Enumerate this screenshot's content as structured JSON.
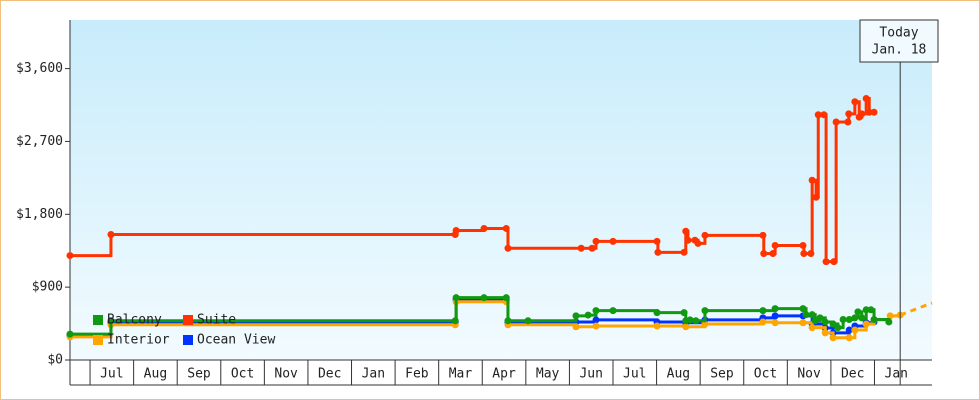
{
  "chart_data": {
    "type": "step-line",
    "xlim": [
      -0.46,
      19.32
    ],
    "ylim": [
      0,
      4200
    ],
    "yticks": [
      {
        "value": 0,
        "label": "$0"
      },
      {
        "value": 900,
        "label": "$900"
      },
      {
        "value": 1800,
        "label": "$1,800"
      },
      {
        "value": 2700,
        "label": "$2,700"
      },
      {
        "value": 3600,
        "label": "$3,600"
      }
    ],
    "xticks": [
      {
        "value": 0,
        "label": "Jul"
      },
      {
        "value": 1,
        "label": "Aug"
      },
      {
        "value": 2,
        "label": "Sep"
      },
      {
        "value": 3,
        "label": "Oct"
      },
      {
        "value": 4,
        "label": "Nov"
      },
      {
        "value": 5,
        "label": "Dec"
      },
      {
        "value": 6,
        "label": "Jan"
      },
      {
        "value": 7,
        "label": "Feb"
      },
      {
        "value": 8,
        "label": "Mar"
      },
      {
        "value": 9,
        "label": "Apr"
      },
      {
        "value": 10,
        "label": "May"
      },
      {
        "value": 11,
        "label": "Jun"
      },
      {
        "value": 12,
        "label": "Jul"
      },
      {
        "value": 13,
        "label": "Aug"
      },
      {
        "value": 14,
        "label": "Sep"
      },
      {
        "value": 15,
        "label": "Oct"
      },
      {
        "value": 16,
        "label": "Nov"
      },
      {
        "value": 17,
        "label": "Dec"
      },
      {
        "value": 18,
        "label": "Jan"
      }
    ],
    "series": [
      {
        "name": "Balcony",
        "color": "#119911",
        "x": [
          -0.46,
          0.48,
          8.38,
          8.4,
          9.04,
          9.55,
          9.59,
          10.05,
          11.15,
          11.43,
          11.61,
          12.0,
          13.01,
          13.63,
          13.67,
          13.77,
          13.9,
          14.11,
          15.44,
          15.72,
          16.36,
          16.43,
          16.57,
          16.64,
          16.75,
          16.87,
          17.05,
          17.16,
          17.28,
          17.42,
          17.55,
          17.62,
          17.71,
          17.81,
          17.92,
          17.99,
          18.33
        ],
        "values": [
          320,
          485,
          485,
          770,
          770,
          770,
          485,
          485,
          545,
          555,
          610,
          610,
          585,
          585,
          485,
          495,
          485,
          610,
          610,
          635,
          635,
          560,
          560,
          485,
          520,
          470,
          445,
          400,
          500,
          500,
          520,
          595,
          520,
          620,
          620,
          500,
          470
        ]
      },
      {
        "name": "Suite",
        "color": "#ff3300",
        "x": [
          -0.46,
          0.48,
          8.38,
          8.4,
          9.04,
          9.55,
          9.59,
          11.27,
          11.52,
          11.61,
          12.0,
          13.01,
          13.03,
          13.63,
          13.67,
          13.72,
          13.88,
          13.95,
          14.11,
          15.44,
          15.46,
          15.67,
          15.72,
          16.36,
          16.38,
          16.54,
          16.57,
          16.66,
          16.71,
          16.84,
          16.89,
          17.07,
          17.12,
          17.39,
          17.41,
          17.55,
          17.65,
          17.71,
          17.81,
          17.88,
          17.99
        ],
        "values": [
          1290,
          1550,
          1550,
          1600,
          1625,
          1625,
          1380,
          1380,
          1380,
          1465,
          1465,
          1465,
          1330,
          1330,
          1590,
          1480,
          1480,
          1440,
          1540,
          1540,
          1315,
          1315,
          1415,
          1415,
          1315,
          1315,
          2220,
          2010,
          3030,
          3030,
          1215,
          1215,
          2940,
          2940,
          3040,
          3190,
          3000,
          3040,
          3230,
          3060,
          3060
        ]
      },
      {
        "name": "Interior",
        "color": "#ffa500",
        "x": [
          -0.46,
          0.48,
          8.38,
          8.4,
          9.55,
          9.59,
          11.15,
          11.61,
          13.01,
          13.67,
          14.11,
          15.44,
          15.72,
          16.36,
          16.57,
          16.87,
          17.05,
          17.42,
          17.55,
          17.81,
          17.99,
          18.36,
          18.59
        ],
        "values": [
          285,
          435,
          435,
          720,
          720,
          435,
          410,
          420,
          420,
          410,
          445,
          470,
          460,
          460,
          400,
          335,
          275,
          275,
          370,
          445,
          495,
          545,
          555
        ]
      },
      {
        "name": "Ocean View",
        "color": "#0033ff",
        "x": [
          -0.46,
          0.48,
          8.38,
          8.4,
          9.55,
          9.59,
          11.15,
          11.61,
          13.01,
          13.67,
          14.11,
          15.44,
          15.72,
          16.36,
          16.57,
          16.87,
          17.05,
          17.42,
          17.55,
          17.81,
          17.99
        ],
        "values": [
          300,
          460,
          460,
          745,
          745,
          460,
          470,
          495,
          470,
          460,
          495,
          520,
          545,
          545,
          445,
          395,
          335,
          370,
          420,
          460,
          470
        ]
      }
    ],
    "forecast": {
      "color": "#ffa500",
      "x": [
        18.59,
        19.32
      ],
      "values": [
        555,
        705
      ]
    },
    "today": {
      "label": "Today",
      "date": "Jan. 18",
      "x": 18.59
    }
  }
}
